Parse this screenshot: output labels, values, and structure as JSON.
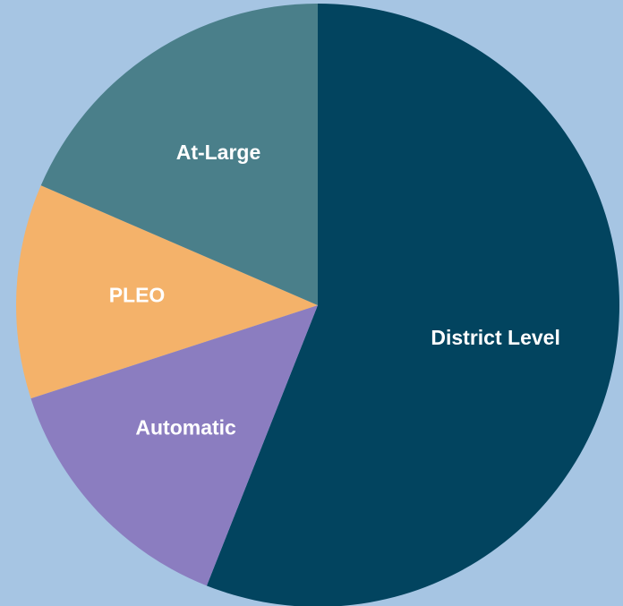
{
  "chart_data": {
    "type": "pie",
    "categories": [
      "District Level",
      "Automatic",
      "PLEO",
      "At-Large"
    ],
    "values": [
      56,
      14,
      11.5,
      18.5
    ],
    "colors": [
      "#02445f",
      "#8b7dc0",
      "#f4b26a",
      "#4a7f8a"
    ],
    "start_angle": "top",
    "direction": "clockwise"
  }
}
